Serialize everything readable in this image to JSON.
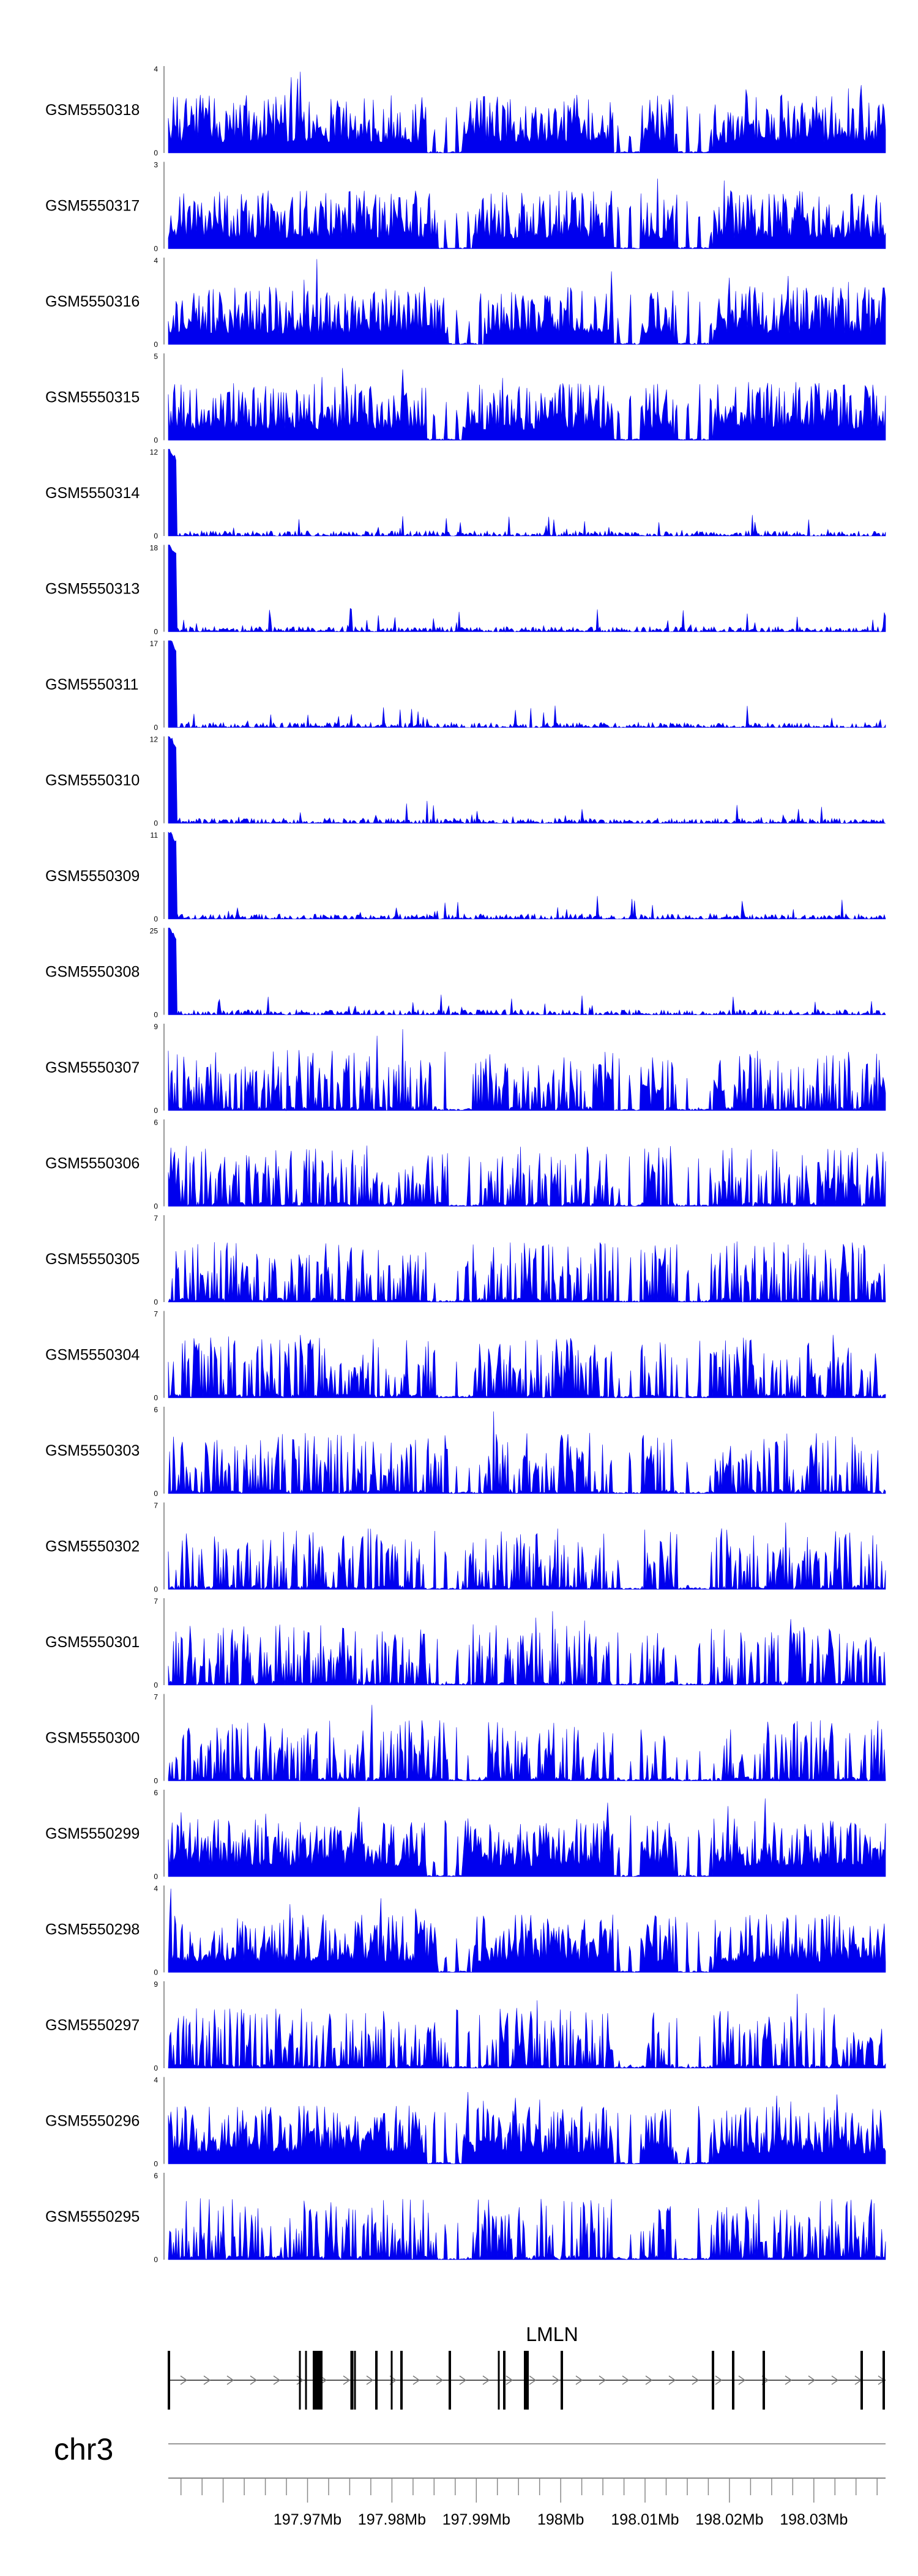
{
  "chart_data": {
    "type": "area",
    "chromosome": "chr3",
    "gene": {
      "name": "LMLN"
    },
    "x_ticks": [
      "197.97Mb",
      "197.98Mb",
      "197.99Mb",
      "198Mb",
      "198.01Mb",
      "198.02Mb",
      "198.03Mb"
    ],
    "x_tick_values_mb": [
      197.97,
      197.98,
      197.99,
      198.0,
      198.01,
      198.02,
      198.03
    ],
    "xlim_mb": [
      197.9535,
      198.0385
    ],
    "color": "#0000ee",
    "tracks": [
      {
        "name": "GSM5550318",
        "ymax": "4",
        "pattern": "dense",
        "yscale": 4
      },
      {
        "name": "GSM5550317",
        "ymax": "3",
        "pattern": "dense",
        "yscale": 3
      },
      {
        "name": "GSM5550316",
        "ymax": "4",
        "pattern": "dense",
        "yscale": 4
      },
      {
        "name": "GSM5550315",
        "ymax": "5",
        "pattern": "dense",
        "yscale": 5
      },
      {
        "name": "GSM5550314",
        "ymax": "12",
        "pattern": "peak",
        "yscale": 12
      },
      {
        "name": "GSM5550313",
        "ymax": "18",
        "pattern": "peak",
        "yscale": 18
      },
      {
        "name": "GSM5550311",
        "ymax": "17",
        "pattern": "peak",
        "yscale": 17
      },
      {
        "name": "GSM5550310",
        "ymax": "12",
        "pattern": "peak",
        "yscale": 12
      },
      {
        "name": "GSM5550309",
        "ymax": "11",
        "pattern": "peak",
        "yscale": 11
      },
      {
        "name": "GSM5550308",
        "ymax": "25",
        "pattern": "peak",
        "yscale": 25
      },
      {
        "name": "GSM5550307",
        "ymax": "9",
        "pattern": "sparse",
        "yscale": 9
      },
      {
        "name": "GSM5550306",
        "ymax": "6",
        "pattern": "sparse",
        "yscale": 6
      },
      {
        "name": "GSM5550305",
        "ymax": "7",
        "pattern": "sparse",
        "yscale": 7
      },
      {
        "name": "GSM5550304",
        "ymax": "7",
        "pattern": "sparse",
        "yscale": 7
      },
      {
        "name": "GSM5550303",
        "ymax": "6",
        "pattern": "sparse",
        "yscale": 6
      },
      {
        "name": "GSM5550302",
        "ymax": "7",
        "pattern": "sparse",
        "yscale": 7
      },
      {
        "name": "GSM5550301",
        "ymax": "7",
        "pattern": "sparse",
        "yscale": 7
      },
      {
        "name": "GSM5550300",
        "ymax": "7",
        "pattern": "sparse",
        "yscale": 7
      },
      {
        "name": "GSM5550299",
        "ymax": "6",
        "pattern": "dense",
        "yscale": 6
      },
      {
        "name": "GSM5550298",
        "ymax": "4",
        "pattern": "dense",
        "yscale": 4
      },
      {
        "name": "GSM5550297",
        "ymax": "9",
        "pattern": "sparse",
        "yscale": 9
      },
      {
        "name": "GSM5550296",
        "ymax": "4",
        "pattern": "dense",
        "yscale": 4
      },
      {
        "name": "GSM5550295",
        "ymax": "6",
        "pattern": "sparse",
        "yscale": 6
      }
    ]
  }
}
